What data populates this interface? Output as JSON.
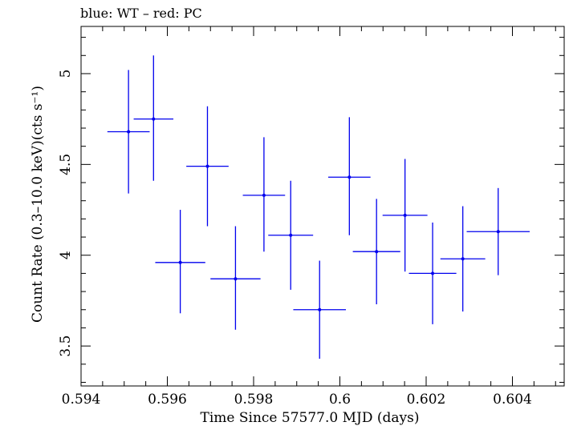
{
  "chart_data": {
    "type": "scatter",
    "title": "blue: WT – red: PC",
    "xlabel": "Time Since 57577.0 MJD (days)",
    "ylabel": "Count Rate (0.3–10.0 keV)(cts s⁻¹)",
    "xlim": [
      0.594,
      0.6052
    ],
    "ylim": [
      3.28,
      5.26
    ],
    "x_ticks": [
      0.594,
      0.596,
      0.598,
      0.6,
      0.602,
      0.604
    ],
    "x_tick_labels": [
      "0.594",
      "0.596",
      "0.598",
      "0.6",
      "0.602",
      "0.604"
    ],
    "y_ticks": [
      3.5,
      4,
      4.5,
      5
    ],
    "y_tick_labels": [
      "3.5",
      "4",
      "4.5",
      "5"
    ],
    "grid": false,
    "series": [
      {
        "color": "#0000ee",
        "points": [
          {
            "x": 0.5951,
            "y": 4.68,
            "xerr": 0.00049,
            "ylow": 4.34,
            "yhigh": 5.02
          },
          {
            "x": 0.59568,
            "y": 4.75,
            "xerr": 0.00046,
            "ylow": 4.41,
            "yhigh": 5.1
          },
          {
            "x": 0.5963,
            "y": 3.96,
            "xerr": 0.00058,
            "ylow": 3.68,
            "yhigh": 4.25
          },
          {
            "x": 0.59693,
            "y": 4.49,
            "xerr": 0.00049,
            "ylow": 4.16,
            "yhigh": 4.82
          },
          {
            "x": 0.59758,
            "y": 3.87,
            "xerr": 0.00058,
            "ylow": 3.59,
            "yhigh": 4.16
          },
          {
            "x": 0.59824,
            "y": 4.33,
            "xerr": 0.00049,
            "ylow": 4.02,
            "yhigh": 4.65
          },
          {
            "x": 0.59886,
            "y": 4.11,
            "xerr": 0.00052,
            "ylow": 3.81,
            "yhigh": 4.41
          },
          {
            "x": 0.59953,
            "y": 3.7,
            "xerr": 0.00061,
            "ylow": 3.43,
            "yhigh": 3.97
          },
          {
            "x": 0.60022,
            "y": 4.43,
            "xerr": 0.00049,
            "ylow": 4.11,
            "yhigh": 4.76
          },
          {
            "x": 0.60085,
            "y": 4.02,
            "xerr": 0.00055,
            "ylow": 3.73,
            "yhigh": 4.31
          },
          {
            "x": 0.60151,
            "y": 4.22,
            "xerr": 0.00052,
            "ylow": 3.91,
            "yhigh": 4.53
          },
          {
            "x": 0.60215,
            "y": 3.9,
            "xerr": 0.00055,
            "ylow": 3.62,
            "yhigh": 4.18
          },
          {
            "x": 0.60285,
            "y": 3.98,
            "xerr": 0.00052,
            "ylow": 3.69,
            "yhigh": 4.27
          },
          {
            "x": 0.60367,
            "y": 4.13,
            "xerr": 0.00073,
            "ylow": 3.89,
            "yhigh": 4.37
          }
        ]
      }
    ]
  }
}
